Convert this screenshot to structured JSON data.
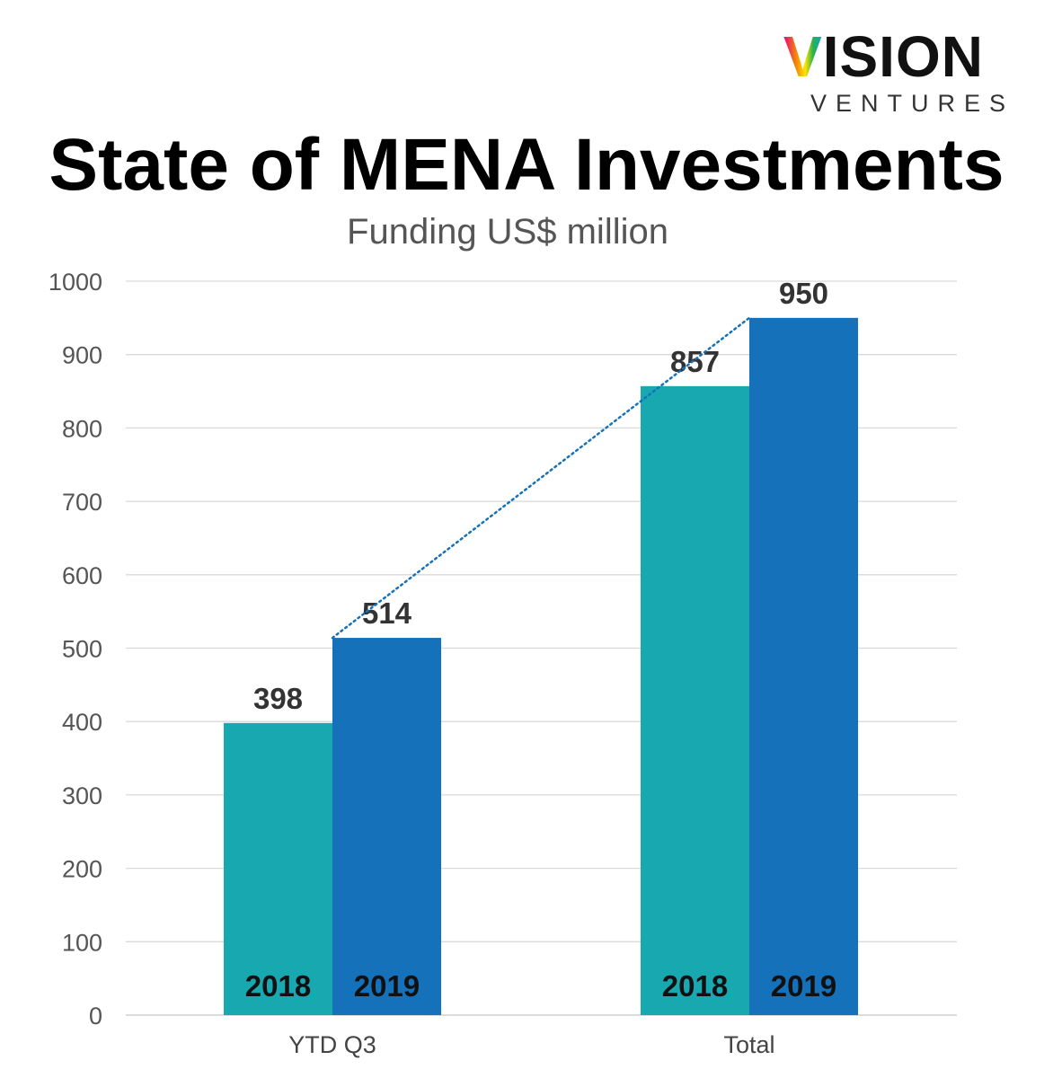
{
  "logo": {
    "mark": "V",
    "word": "ISION",
    "sub": "VENTURES"
  },
  "chart_data": {
    "type": "bar",
    "title": "State of MENA Investments",
    "subtitle": "Funding US$ million",
    "categories": [
      "YTD Q3",
      "Total"
    ],
    "series": [
      {
        "name": "2018",
        "values": [
          398,
          857
        ],
        "color": "#17a8b0"
      },
      {
        "name": "2019",
        "values": [
          514,
          950
        ],
        "color": "#1571b9"
      }
    ],
    "ylim": [
      0,
      1000
    ],
    "yticks": [
      0,
      100,
      200,
      300,
      400,
      500,
      600,
      700,
      800,
      900,
      1000
    ],
    "grid": true,
    "trendline": {
      "from": [
        0,
        1
      ],
      "to": [
        1,
        1
      ],
      "style": "dotted",
      "color": "#1571b9"
    },
    "legend": "inside-bars"
  }
}
